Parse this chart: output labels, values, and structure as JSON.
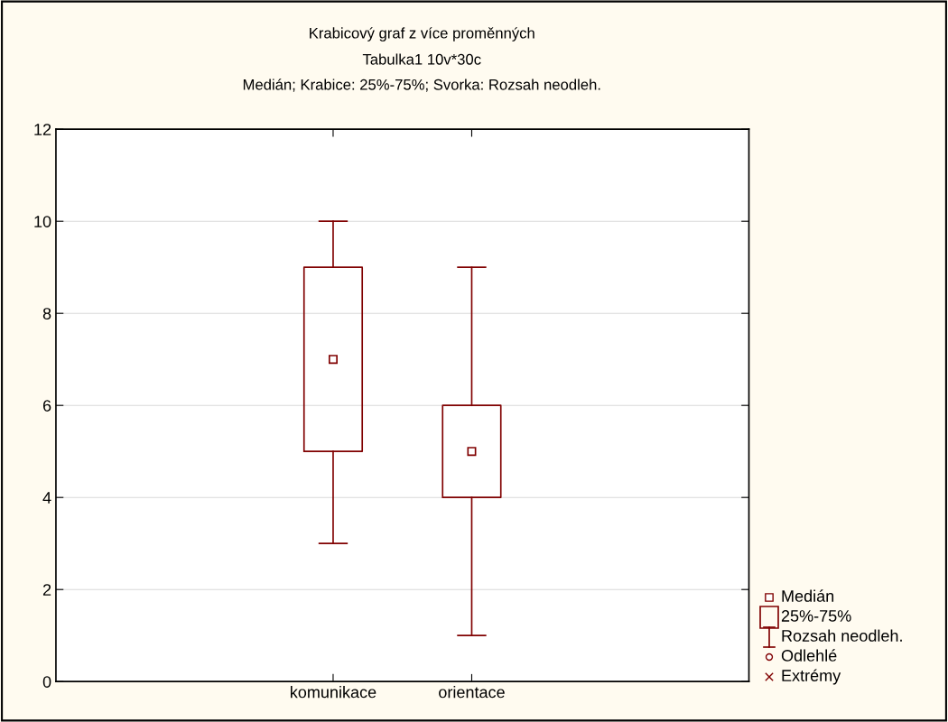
{
  "chart_data": {
    "type": "box",
    "title": "Krabicový graf z více proměnných",
    "subtitle": "Tabulka1 10v*30c\nMedián; Krabice: 25%-75%; Svorka: Rozsah neodleh.",
    "categories": [
      "komunikace",
      "orientace"
    ],
    "boxes": [
      {
        "low": 3,
        "q1": 5,
        "median": 7,
        "q3": 9,
        "high": 10
      },
      {
        "low": 1,
        "q1": 4,
        "median": 5,
        "q3": 6,
        "high": 9
      }
    ],
    "color": "#800000",
    "ylim": [
      0,
      12
    ],
    "yticks": [
      0,
      2,
      4,
      6,
      8,
      10,
      12
    ],
    "grid": "y",
    "marker": "square",
    "annotations": [
      "Medián",
      "25%-75%",
      "Rozsah neodleh.",
      "Odlehlé",
      "Extrémy"
    ]
  }
}
